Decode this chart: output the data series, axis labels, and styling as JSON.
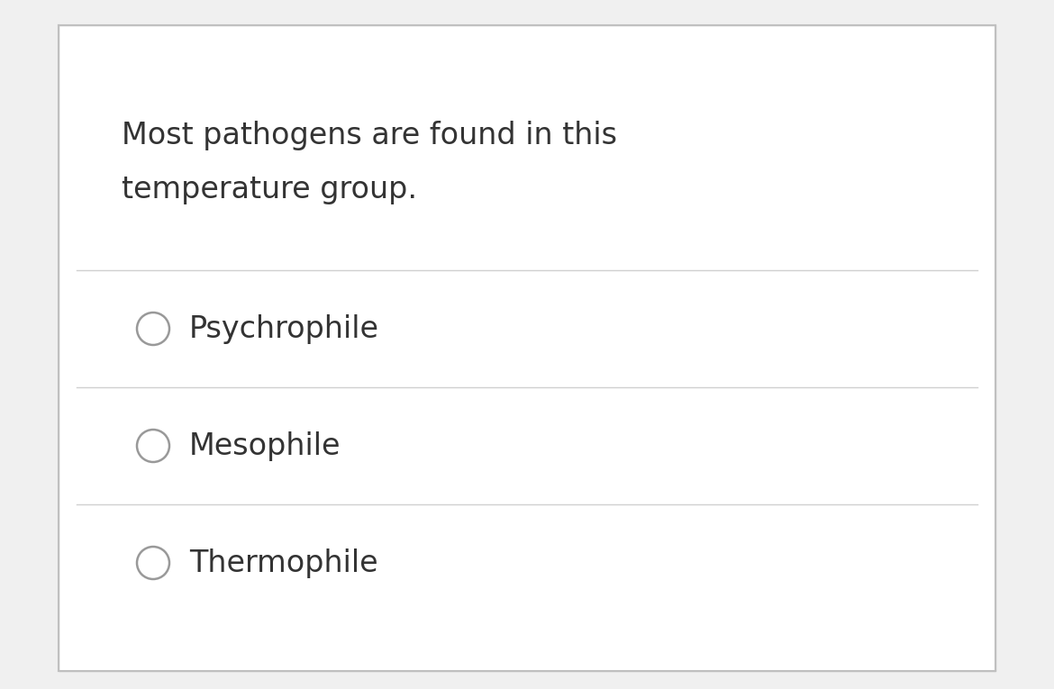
{
  "question_line1": "Most pathogens are found in this",
  "question_line2": "temperature group.",
  "options": [
    "Psychrophile",
    "Mesophile",
    "Thermophile"
  ],
  "bg_color": "#f0f0f0",
  "card_color": "#ffffff",
  "top_stripe_color": "#f0f0f0",
  "border_color": "#c0c0c0",
  "divider_color": "#d0d0d0",
  "text_color": "#333333",
  "circle_edge_color": "#999999",
  "circle_fill_color": "#ffffff",
  "question_fontsize": 24,
  "option_fontsize": 24
}
